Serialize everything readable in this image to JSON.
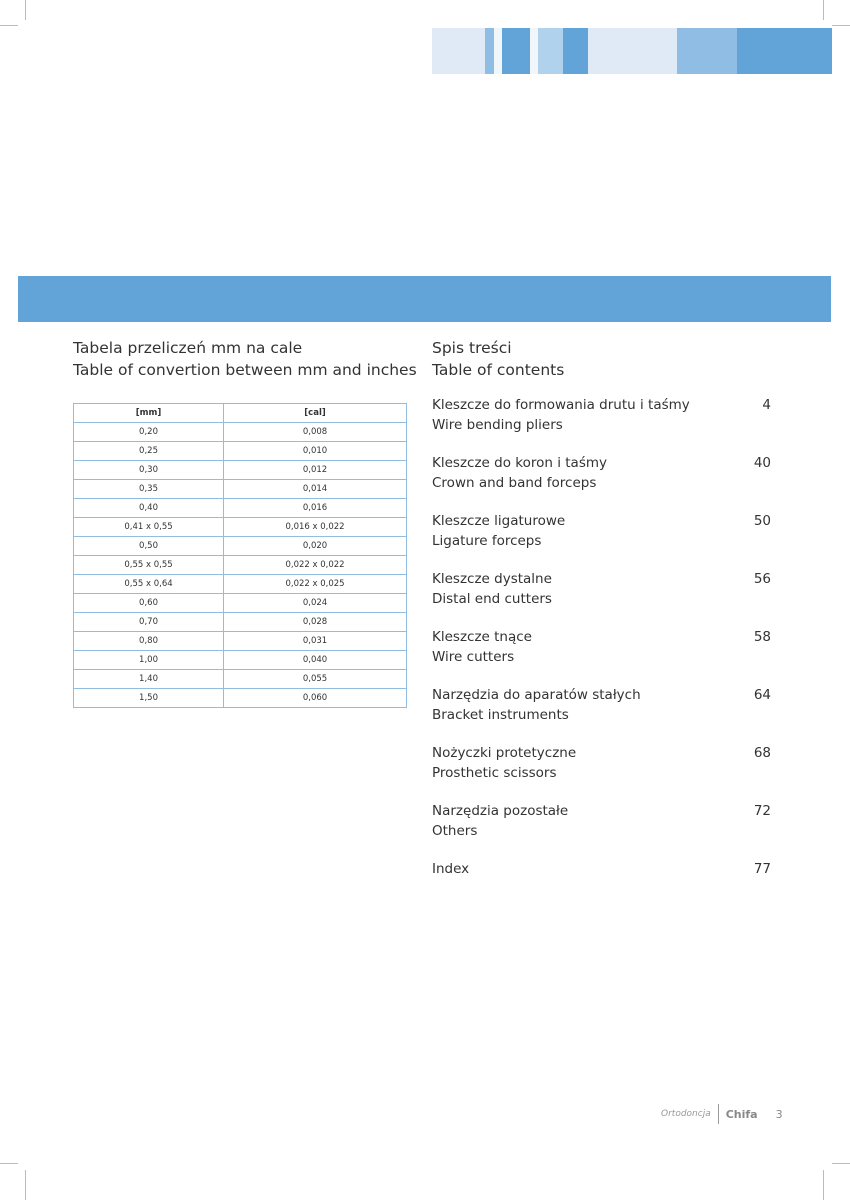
{
  "colors": {
    "accent": "#62a4d8",
    "mid": "#8fbde3",
    "light": "#dfeaf6",
    "pale": "#b0d2ec"
  },
  "conversion": {
    "title_pl": "Tabela przeliczeń mm na cale",
    "title_en": "Table of convertion between mm and inches",
    "headers": [
      "[mm]",
      "[cal]"
    ],
    "rows": [
      [
        "0,20",
        "0,008"
      ],
      [
        "0,25",
        "0,010"
      ],
      [
        "0,30",
        "0,012"
      ],
      [
        "0,35",
        "0,014"
      ],
      [
        "0,40",
        "0,016"
      ],
      [
        "0,41 x 0,55",
        "0,016 x 0,022"
      ],
      [
        "0,50",
        "0,020"
      ],
      [
        "0,55 x 0,55",
        "0,022 x 0,022"
      ],
      [
        "0,55 x 0,64",
        "0,022 x 0,025"
      ],
      [
        "0,60",
        "0,024"
      ],
      [
        "0,70",
        "0,028"
      ],
      [
        "0,80",
        "0,031"
      ],
      [
        "1,00",
        "0,040"
      ],
      [
        "1,40",
        "0,055"
      ],
      [
        "1,50",
        "0,060"
      ]
    ]
  },
  "toc": {
    "title_pl": "Spis treści",
    "title_en": "Table of contents",
    "items": [
      {
        "pl": "Kleszcze do formowania drutu i taśmy",
        "en": "Wire bending pliers",
        "page": "4"
      },
      {
        "pl": "Kleszcze do koron i taśmy",
        "en": "Crown and band forceps",
        "page": "40"
      },
      {
        "pl": "Kleszcze ligaturowe",
        "en": "Ligature forceps",
        "page": "50"
      },
      {
        "pl": "Kleszcze dystalne",
        "en": "Distal end cutters",
        "page": "56"
      },
      {
        "pl": "Kleszcze tnące",
        "en": "Wire cutters",
        "page": "58"
      },
      {
        "pl": "Narzędzia do aparatów stałych",
        "en": "Bracket instruments",
        "page": "64"
      },
      {
        "pl": "Nożyczki protetyczne",
        "en": "Prosthetic scissors",
        "page": "68"
      },
      {
        "pl": "Narzędzia pozostałe",
        "en": "Others",
        "page": "72"
      },
      {
        "pl": "Index",
        "en": "",
        "page": "77"
      }
    ]
  },
  "footer": {
    "section": "Ortodoncja",
    "brand": "Chifa",
    "page": "3"
  }
}
